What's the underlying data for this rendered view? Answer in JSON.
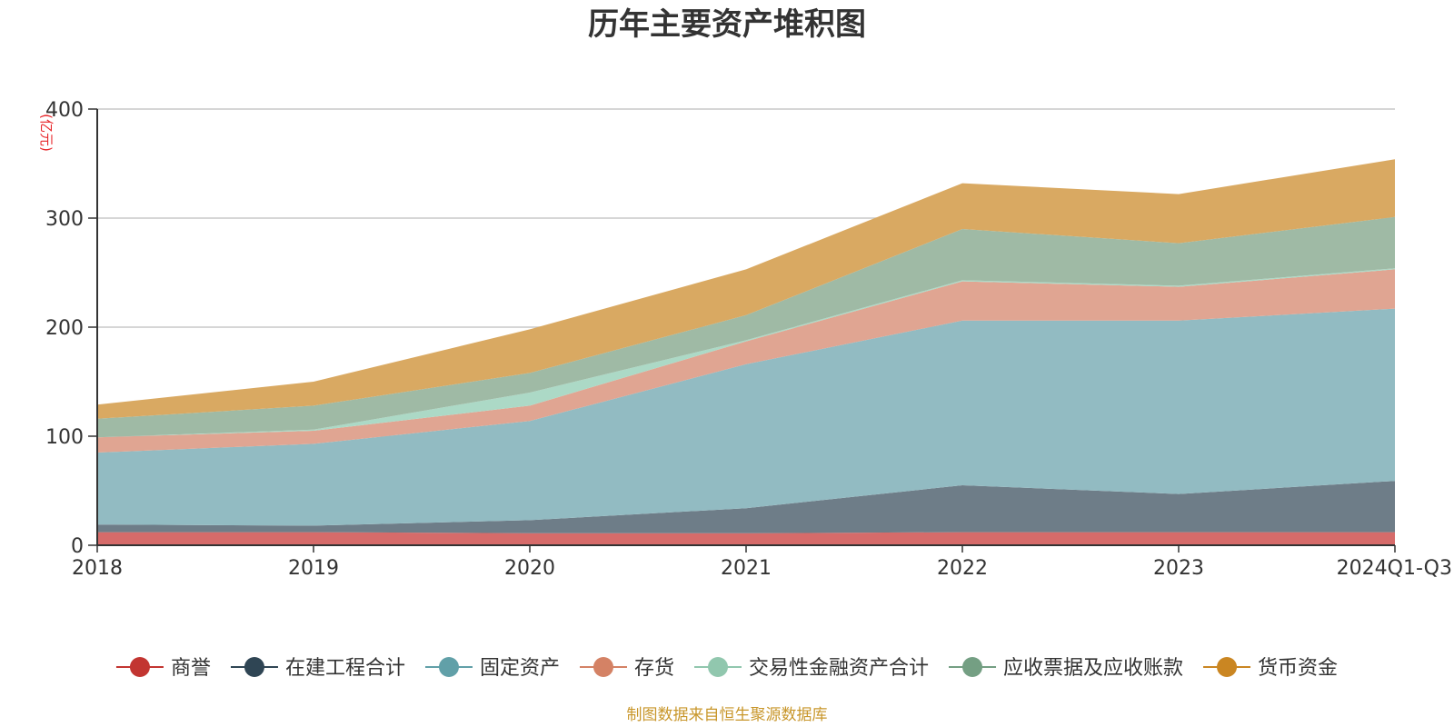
{
  "chart_data": {
    "type": "area",
    "stacked": true,
    "title": "历年主要资产堆积图",
    "ylabel": "(亿元)",
    "xlabel": "",
    "categories": [
      "2018",
      "2019",
      "2020",
      "2021",
      "2022",
      "2023",
      "2024Q1-Q3"
    ],
    "ylim": [
      0,
      400
    ],
    "yticks": [
      "0",
      "100",
      "200",
      "300",
      "400"
    ],
    "grid": true,
    "legend_position": "bottom",
    "series": [
      {
        "name": "商誉",
        "values": [
          12,
          12,
          11,
          11,
          12,
          12,
          12
        ]
      },
      {
        "name": "在建工程合计",
        "values": [
          7,
          6,
          12,
          23,
          43,
          35,
          47
        ]
      },
      {
        "name": "固定资产",
        "values": [
          66,
          75,
          91,
          132,
          151,
          159,
          158
        ]
      },
      {
        "name": "存货",
        "values": [
          14,
          12,
          14,
          21,
          36,
          31,
          36
        ]
      },
      {
        "name": "交易性金融资产合计",
        "values": [
          0,
          1,
          12,
          1,
          1,
          1,
          1
        ]
      },
      {
        "name": "应收票据及应收账款",
        "values": [
          17,
          22,
          18,
          23,
          47,
          39,
          47
        ]
      },
      {
        "name": "货币资金",
        "values": [
          13,
          22,
          40,
          42,
          42,
          45,
          53
        ]
      }
    ],
    "legend_colors": [
      "#c23531",
      "#2f4554",
      "#61a0a8",
      "#d48265",
      "#91c7ae",
      "#749f83",
      "#ca8622"
    ],
    "fill_colors": [
      "#d66b6a",
      "#6e7d88",
      "#92bbc2",
      "#e0a592",
      "#acd9c6",
      "#9fbaa5",
      "#d9a962"
    ],
    "source": "制图数据来自恒生聚源数据库"
  }
}
